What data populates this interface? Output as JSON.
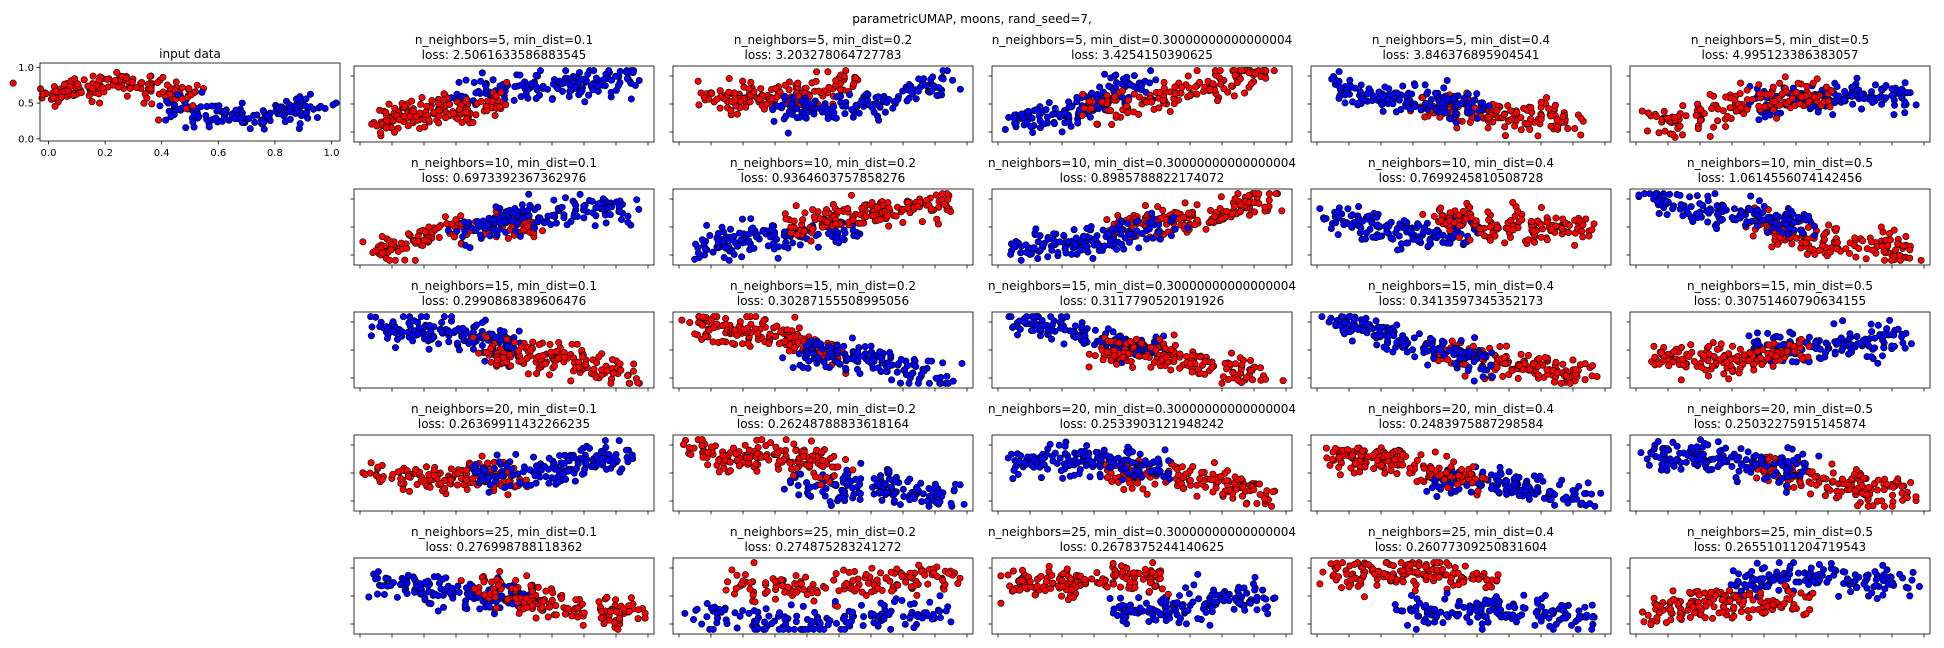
{
  "suptitle": "parametricUMAP, moons, rand_seed=7,",
  "colors": {
    "class0": "#ff0000",
    "class1": "#0000ff",
    "edge": "#000000"
  },
  "input_panel": {
    "title": "input data",
    "xticks": [
      "0.0",
      "0.2",
      "0.4",
      "0.6",
      "0.8",
      "1.0"
    ],
    "yticks": [
      "0.0",
      "0.5",
      "1.0"
    ],
    "xlim": [
      -0.03,
      1.03
    ],
    "ylim": [
      -0.03,
      1.06
    ]
  },
  "chart_data": {
    "type": "scatter",
    "description": "Grid of parametric UMAP embeddings of the two-moons dataset (red = moon 0, blue = moon 1). Point sets are approximate visual reproductions.",
    "n_points": 300,
    "n_neighbors": [
      "5",
      "10",
      "15",
      "20",
      "25"
    ],
    "min_dist": [
      "0.1",
      "0.2",
      "0.30000000000000004",
      "0.4",
      "0.5"
    ],
    "panels": [
      {
        "title": "n_neighbors=5, min_dist=0.1",
        "loss": "loss: 2.5061633586883545",
        "red": [
          0.05,
          0.18,
          0.5,
          0.6
        ],
        "blue": [
          0.3,
          0.55,
          0.95,
          0.95
        ]
      },
      {
        "title": "n_neighbors=5, min_dist=0.2",
        "loss": "loss: 3.203278064727783",
        "red": [
          0.1,
          0.5,
          0.6,
          0.8
        ],
        "blue": [
          0.35,
          0.3,
          0.95,
          0.8
        ]
      },
      {
        "title": "n_neighbors=5, min_dist=0.30000000000000004",
        "loss": "loss: 3.4254150390625",
        "red": [
          0.3,
          0.4,
          0.95,
          0.95
        ],
        "blue": [
          0.05,
          0.15,
          0.5,
          0.75
        ]
      },
      {
        "title": "n_neighbors=5, min_dist=0.4",
        "loss": "loss: 3.846376895904541",
        "red": [
          0.35,
          0.5,
          0.9,
          0.2
        ],
        "blue": [
          0.05,
          0.8,
          0.55,
          0.4
        ]
      },
      {
        "title": "n_neighbors=5, min_dist=0.5",
        "loss": "loss: 4.995123386383057",
        "red": [
          0.05,
          0.25,
          0.65,
          0.7
        ],
        "blue": [
          0.4,
          0.55,
          0.95,
          0.6
        ]
      },
      {
        "title": "n_neighbors=10, min_dist=0.1",
        "loss": "loss: 0.6973392367362976",
        "red": [
          0.05,
          0.15,
          0.6,
          0.65
        ],
        "blue": [
          0.35,
          0.5,
          0.95,
          0.85
        ]
      },
      {
        "title": "n_neighbors=10, min_dist=0.2",
        "loss": "loss: 0.9364603757858276",
        "red": [
          0.4,
          0.5,
          0.95,
          0.9
        ],
        "blue": [
          0.05,
          0.15,
          0.6,
          0.55
        ]
      },
      {
        "title": "n_neighbors=10, min_dist=0.30000000000000004",
        "loss": "loss: 0.8985788822174072",
        "red": [
          0.4,
          0.4,
          0.95,
          0.9
        ],
        "blue": [
          0.05,
          0.1,
          0.6,
          0.55
        ]
      },
      {
        "title": "n_neighbors=10, min_dist=0.4",
        "loss": "loss: 0.7699245810508728",
        "red": [
          0.4,
          0.65,
          0.95,
          0.45
        ],
        "blue": [
          0.05,
          0.6,
          0.55,
          0.35
        ]
      },
      {
        "title": "n_neighbors=10, min_dist=0.5",
        "loss": "loss: 1.0614556074142456",
        "red": [
          0.4,
          0.55,
          0.95,
          0.1
        ],
        "blue": [
          0.05,
          0.92,
          0.6,
          0.45
        ]
      },
      {
        "title": "n_neighbors=15, min_dist=0.1",
        "loss": "loss: 0.2990868389606476",
        "red": [
          0.4,
          0.6,
          0.95,
          0.1
        ],
        "blue": [
          0.05,
          0.9,
          0.55,
          0.55
        ]
      },
      {
        "title": "n_neighbors=15, min_dist=0.2",
        "loss": "loss: 0.30287155508995056",
        "red": [
          0.05,
          0.9,
          0.6,
          0.5
        ],
        "blue": [
          0.4,
          0.5,
          0.95,
          0.1
        ]
      },
      {
        "title": "n_neighbors=15, min_dist=0.30000000000000004",
        "loss": "loss: 0.3117790520191926",
        "red": [
          0.35,
          0.5,
          0.95,
          0.15
        ],
        "blue": [
          0.05,
          0.92,
          0.55,
          0.5
        ]
      },
      {
        "title": "n_neighbors=15, min_dist=0.4",
        "loss": "loss: 0.3413597345352173",
        "red": [
          0.4,
          0.45,
          0.95,
          0.15
        ],
        "blue": [
          0.05,
          0.9,
          0.6,
          0.3
        ]
      },
      {
        "title": "n_neighbors=15, min_dist=0.5",
        "loss": "loss: 0.30751460790634155",
        "red": [
          0.05,
          0.35,
          0.6,
          0.45
        ],
        "blue": [
          0.4,
          0.5,
          0.95,
          0.65
        ]
      },
      {
        "title": "n_neighbors=20, min_dist=0.1",
        "loss": "loss: 0.26369911432266235",
        "red": [
          0.05,
          0.5,
          0.55,
          0.4
        ],
        "blue": [
          0.4,
          0.45,
          0.95,
          0.7
        ]
      },
      {
        "title": "n_neighbors=20, min_dist=0.2",
        "loss": "loss: 0.26248788833618164",
        "red": [
          0.05,
          0.85,
          0.55,
          0.6
        ],
        "blue": [
          0.4,
          0.4,
          0.95,
          0.15
        ]
      },
      {
        "title": "n_neighbors=20, min_dist=0.30000000000000004",
        "loss": "loss: 0.2533903121948242",
        "red": [
          0.4,
          0.55,
          0.95,
          0.2
        ],
        "blue": [
          0.05,
          0.7,
          0.6,
          0.6
        ]
      },
      {
        "title": "n_neighbors=20, min_dist=0.4",
        "loss": "loss: 0.2483975887298584",
        "red": [
          0.05,
          0.75,
          0.55,
          0.45
        ],
        "blue": [
          0.4,
          0.4,
          0.95,
          0.2
        ]
      },
      {
        "title": "n_neighbors=20, min_dist=0.5",
        "loss": "loss: 0.25032275915145874",
        "red": [
          0.4,
          0.55,
          0.95,
          0.2
        ],
        "blue": [
          0.05,
          0.75,
          0.6,
          0.6
        ]
      },
      {
        "title": "n_neighbors=25, min_dist=0.1",
        "loss": "loss: 0.276998788118362",
        "red": [
          0.4,
          0.6,
          0.95,
          0.2
        ],
        "blue": [
          0.05,
          0.7,
          0.6,
          0.45
        ]
      },
      {
        "title": "n_neighbors=25, min_dist=0.2",
        "loss": "loss: 0.274875283241272",
        "red": [
          0.2,
          0.6,
          0.95,
          0.75
        ],
        "blue": [
          0.05,
          0.15,
          0.95,
          0.2
        ]
      },
      {
        "title": "n_neighbors=25, min_dist=0.30000000000000004",
        "loss": "loss: 0.2678375244140625",
        "red": [
          0.05,
          0.7,
          0.6,
          0.75
        ],
        "blue": [
          0.4,
          0.3,
          0.95,
          0.45
        ]
      },
      {
        "title": "n_neighbors=25, min_dist=0.4",
        "loss": "loss: 0.26077309250831604",
        "red": [
          0.05,
          0.85,
          0.6,
          0.8
        ],
        "blue": [
          0.3,
          0.3,
          0.95,
          0.2
        ]
      },
      {
        "title": "n_neighbors=25, min_dist=0.5",
        "loss": "loss: 0.26551011204719543",
        "red": [
          0.05,
          0.3,
          0.6,
          0.45
        ],
        "blue": [
          0.35,
          0.7,
          0.95,
          0.75
        ]
      }
    ]
  }
}
